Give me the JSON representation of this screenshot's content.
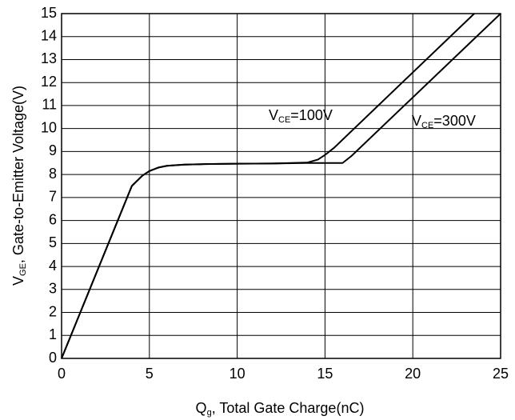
{
  "chart_data": {
    "type": "line",
    "x_label": [
      "Q",
      "g",
      ", Total Gate Charge(nC)"
    ],
    "y_label": [
      "V",
      "GE",
      ", Gate-to-Emitter Voltage(V)"
    ],
    "xlim": [
      0,
      25
    ],
    "xticks": [
      0,
      5,
      10,
      15,
      20,
      25
    ],
    "ylim": [
      0,
      15
    ],
    "yticks": [
      0,
      1,
      2,
      3,
      4,
      5,
      6,
      7,
      8,
      9,
      10,
      11,
      12,
      13,
      14,
      15
    ],
    "grid": true,
    "series": [
      {
        "label": [
          "V",
          "CE",
          "=100V"
        ],
        "color": "#000000",
        "x": [
          0,
          4,
          4.6,
          5,
          5.5,
          6,
          7,
          8,
          10,
          12,
          14,
          14.6,
          15,
          15.5,
          23.5
        ],
        "values": [
          0,
          7.5,
          7.95,
          8.15,
          8.3,
          8.38,
          8.43,
          8.45,
          8.47,
          8.48,
          8.52,
          8.65,
          8.85,
          9.15,
          15
        ]
      },
      {
        "label": [
          "V",
          "CE",
          "=300V"
        ],
        "color": "#000000",
        "x": [
          0,
          4,
          4.6,
          5,
          5.5,
          6,
          7,
          8,
          10,
          12,
          14,
          15,
          16,
          16.5,
          25
        ],
        "values": [
          0,
          7.5,
          7.95,
          8.15,
          8.3,
          8.38,
          8.43,
          8.45,
          8.47,
          8.48,
          8.5,
          8.5,
          8.5,
          8.8,
          15
        ]
      }
    ]
  }
}
